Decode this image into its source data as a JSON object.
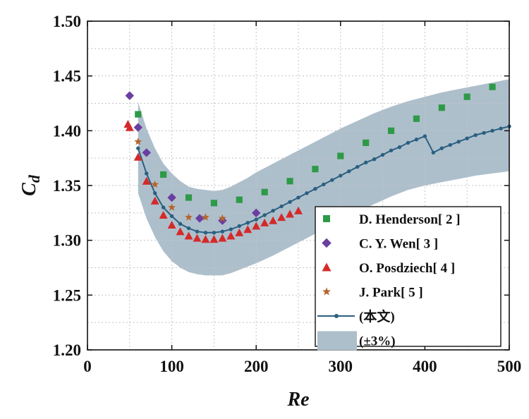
{
  "chart_data": {
    "type": "scatter",
    "xlabel": "Re",
    "ylabel_main": "C",
    "ylabel_sub": "d",
    "xlim": [
      0,
      500
    ],
    "ylim": [
      1.2,
      1.5
    ],
    "xticks": [
      0,
      100,
      200,
      300,
      400,
      500
    ],
    "yticks": [
      1.2,
      1.25,
      1.3,
      1.35,
      1.4,
      1.45,
      1.5
    ],
    "xtick_labels": [
      "0",
      "100",
      "200",
      "300",
      "400",
      "500"
    ],
    "ytick_labels": [
      "1.20",
      "1.25",
      "1.30",
      "1.35",
      "1.40",
      "1.45",
      "1.50"
    ],
    "grid": true,
    "legend_position": "right",
    "colors": {
      "henderson": "#2e9a48",
      "wen": "#6a3fa0",
      "posdziech": "#d42a2a",
      "park": "#b5652a",
      "line": "#2a6080",
      "band": "#aebfcc"
    },
    "series": [
      {
        "name": "D. Henderson[ 2 ]",
        "marker": "square",
        "color_key": "henderson",
        "x": [
          60,
          90,
          120,
          150,
          180,
          210,
          240,
          270,
          300,
          330,
          360,
          390,
          420,
          450,
          480
        ],
        "y": [
          1.415,
          1.36,
          1.339,
          1.334,
          1.337,
          1.344,
          1.354,
          1.365,
          1.377,
          1.389,
          1.4,
          1.411,
          1.421,
          1.431,
          1.44
        ]
      },
      {
        "name": "C. Y. Wen[ 3 ]",
        "marker": "diamond",
        "color_key": "wen",
        "x": [
          50,
          60,
          70,
          100,
          133,
          160,
          200
        ],
        "y": [
          1.432,
          1.403,
          1.38,
          1.339,
          1.32,
          1.318,
          1.325
        ]
      },
      {
        "name": "O. Posdziech[ 4 ]",
        "marker": "triangle",
        "color_key": "posdziech",
        "x": [
          48,
          50,
          60,
          70,
          80,
          90,
          100,
          110,
          120,
          130,
          140,
          150,
          160,
          170,
          180,
          190,
          200,
          210,
          220,
          230,
          240,
          250
        ],
        "y": [
          1.406,
          1.403,
          1.376,
          1.354,
          1.336,
          1.323,
          1.314,
          1.308,
          1.304,
          1.302,
          1.301,
          1.301,
          1.302,
          1.304,
          1.307,
          1.31,
          1.313,
          1.316,
          1.318,
          1.321,
          1.324,
          1.327
        ]
      },
      {
        "name": "J. Park[ 5 ]",
        "marker": "star",
        "color_key": "park",
        "x": [
          60,
          80,
          100,
          120,
          140,
          160
        ],
        "y": [
          1.39,
          1.351,
          1.33,
          1.321,
          1.321,
          1.32
        ]
      },
      {
        "name": "(本文)",
        "marker": "line-dot",
        "color_key": "line",
        "x": [
          60,
          70,
          80,
          90,
          100,
          110,
          120,
          130,
          140,
          150,
          160,
          170,
          180,
          190,
          200,
          210,
          220,
          230,
          240,
          250,
          260,
          270,
          280,
          290,
          300,
          310,
          320,
          330,
          340,
          350,
          360,
          370,
          380,
          390,
          400,
          410,
          420,
          430,
          440,
          450,
          460,
          470,
          480,
          490,
          500
        ],
        "y": [
          1.384,
          1.361,
          1.343,
          1.33,
          1.322,
          1.315,
          1.311,
          1.308,
          1.307,
          1.307,
          1.308,
          1.31,
          1.313,
          1.316,
          1.319,
          1.323,
          1.327,
          1.331,
          1.335,
          1.339,
          1.343,
          1.347,
          1.351,
          1.355,
          1.359,
          1.363,
          1.367,
          1.371,
          1.374,
          1.378,
          1.382,
          1.385,
          1.389,
          1.392,
          1.395,
          1.38,
          1.384,
          1.387,
          1.39,
          1.393,
          1.396,
          1.398,
          1.4,
          1.402,
          1.404
        ]
      },
      {
        "name": "(±3%)",
        "marker": "band",
        "color_key": "band",
        "x": [
          60,
          70,
          80,
          90,
          100,
          110,
          120,
          130,
          140,
          150,
          160,
          170,
          180,
          190,
          200,
          220,
          240,
          260,
          280,
          300,
          320,
          340,
          360,
          380,
          400,
          420,
          440,
          460,
          480,
          500
        ],
        "upper": [
          1.426,
          1.402,
          1.384,
          1.37,
          1.361,
          1.354,
          1.349,
          1.347,
          1.346,
          1.345,
          1.346,
          1.349,
          1.353,
          1.357,
          1.362,
          1.37,
          1.378,
          1.386,
          1.394,
          1.402,
          1.409,
          1.416,
          1.422,
          1.427,
          1.431,
          1.435,
          1.438,
          1.441,
          1.444,
          1.447
        ],
        "lower": [
          1.343,
          1.32,
          1.303,
          1.29,
          1.281,
          1.275,
          1.271,
          1.269,
          1.268,
          1.268,
          1.268,
          1.27,
          1.273,
          1.276,
          1.279,
          1.286,
          1.294,
          1.302,
          1.31,
          1.318,
          1.326,
          1.333,
          1.34,
          1.346,
          1.35,
          1.353,
          1.356,
          1.359,
          1.361,
          1.363
        ]
      }
    ]
  }
}
